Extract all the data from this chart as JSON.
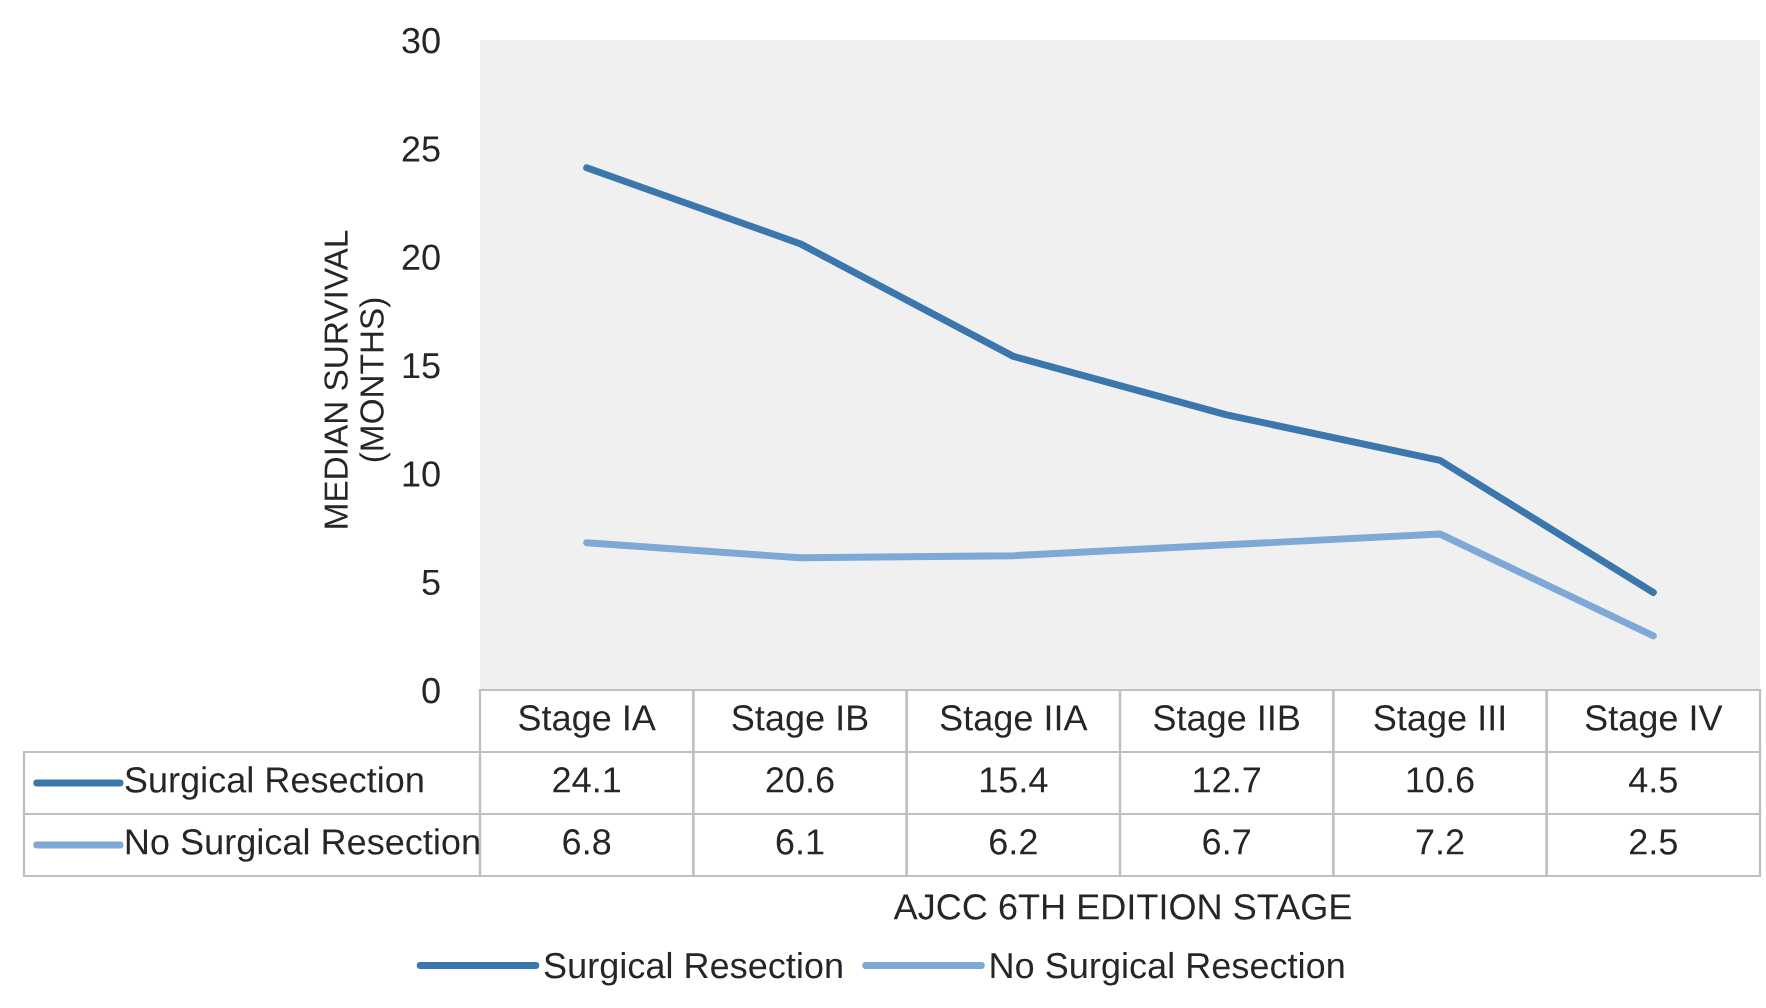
{
  "chart_data": {
    "type": "line",
    "categories": [
      "Stage IA",
      "Stage IB",
      "Stage IIA",
      "Stage IIB",
      "Stage III",
      "Stage IV"
    ],
    "series": [
      {
        "name": "Surgical Resection",
        "color": "#3b76ad",
        "values": [
          24.1,
          20.6,
          15.4,
          12.7,
          10.6,
          4.5
        ]
      },
      {
        "name": "No Surgical Resection",
        "color": "#7ea8d6",
        "values": [
          6.8,
          6.1,
          6.2,
          6.7,
          7.2,
          2.5
        ]
      }
    ],
    "xlabel": "AJCC 6TH EDITION STAGE",
    "ylabel": "MEDIAN SURVIVAL\n(MONTHS)",
    "ylim": [
      0,
      30
    ],
    "yticks": [
      0,
      5,
      10,
      15,
      20,
      25,
      30
    ],
    "data_labels": true,
    "legend": "bottom",
    "grid": false,
    "marker": "none",
    "line_style": "solid"
  }
}
